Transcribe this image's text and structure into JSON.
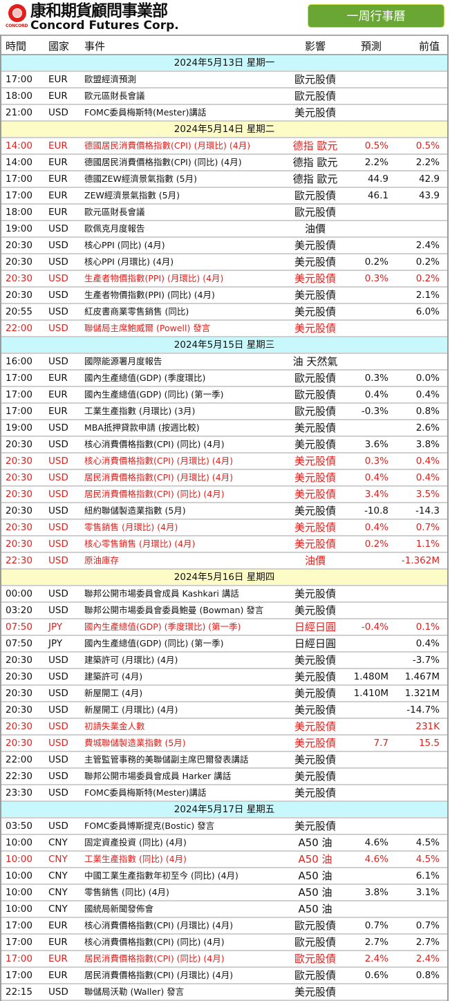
{
  "header": {
    "logo_text": "CONCORD",
    "brand_cn": "康和期貨顧問事業部",
    "brand_en": "Concord Futures Corp.",
    "calendar_button": "一周行事曆"
  },
  "columns": {
    "time": "時間",
    "country": "國家",
    "event": "事件",
    "impact": "影響",
    "forecast": "預測",
    "previous": "前值"
  },
  "days": [
    {
      "date": "2024年5月13日  星期一",
      "events": [
        {
          "time": "17:00",
          "currency": "EUR",
          "event": "歐盟經濟預測",
          "impact": "歐元股債",
          "forecast": "",
          "previous": "",
          "highlight": false
        },
        {
          "time": "18:00",
          "currency": "EUR",
          "event": "歐元區財長會議",
          "impact": "歐元股債",
          "forecast": "",
          "previous": "",
          "highlight": false
        },
        {
          "time": "21:00",
          "currency": "USD",
          "event": "FOMC委員梅斯特(Mester)講話",
          "impact": "美元股債",
          "forecast": "",
          "previous": "",
          "highlight": false
        }
      ]
    },
    {
      "date": "2024年5月14日  星期二",
      "events": [
        {
          "time": "14:00",
          "currency": "EUR",
          "event": "德國居民消費價格指數(CPI) (月環比) (4月)",
          "impact": "德指 歐元",
          "forecast": "0.5%",
          "previous": "0.5%",
          "highlight": true
        },
        {
          "time": "14:00",
          "currency": "EUR",
          "event": "德國居民消費價格指數(CPI) (同比) (4月)",
          "impact": "德指 歐元",
          "forecast": "2.2%",
          "previous": "2.2%",
          "highlight": false
        },
        {
          "time": "17:00",
          "currency": "EUR",
          "event": "德國ZEW經濟景氣指數 (5月)",
          "impact": "德指 歐元",
          "forecast": "44.9",
          "previous": "42.9",
          "highlight": false
        },
        {
          "time": "17:00",
          "currency": "EUR",
          "event": "ZEW經濟景氣指數 (5月)",
          "impact": "歐元股債",
          "forecast": "46.1",
          "previous": "43.9",
          "highlight": false
        },
        {
          "time": "18:00",
          "currency": "EUR",
          "event": "歐元區財長會議",
          "impact": "歐元股債",
          "forecast": "",
          "previous": "",
          "highlight": false
        },
        {
          "time": "19:00",
          "currency": "USD",
          "event": "歐佩克月度報告",
          "impact": "油價",
          "forecast": "",
          "previous": "",
          "highlight": false
        },
        {
          "time": "20:30",
          "currency": "USD",
          "event": "核心PPI (同比) (4月)",
          "impact": "美元股債",
          "forecast": "",
          "previous": "2.4%",
          "highlight": false
        },
        {
          "time": "20:30",
          "currency": "USD",
          "event": "核心PPI (月環比) (4月)",
          "impact": "美元股債",
          "forecast": "0.2%",
          "previous": "0.2%",
          "highlight": false
        },
        {
          "time": "20:30",
          "currency": "USD",
          "event": "生產者物價指數(PPI) (月環比) (4月)",
          "impact": "美元股債",
          "forecast": "0.3%",
          "previous": "0.2%",
          "highlight": true
        },
        {
          "time": "20:30",
          "currency": "USD",
          "event": "生產者物價指數(PPI) (同比) (4月)",
          "impact": "美元股債",
          "forecast": "",
          "previous": "2.1%",
          "highlight": false
        },
        {
          "time": "20:55",
          "currency": "USD",
          "event": "紅皮書商業零售銷售 (同比)",
          "impact": "美元股債",
          "forecast": "",
          "previous": "6.0%",
          "highlight": false
        },
        {
          "time": "22:00",
          "currency": "USD",
          "event": "聯儲局主席鮑威爾 (Powell) 發言",
          "impact": "美元股債",
          "forecast": "",
          "previous": "",
          "highlight": true
        }
      ]
    },
    {
      "date": "2024年5月15日  星期三",
      "events": [
        {
          "time": "16:00",
          "currency": "USD",
          "event": "國際能源署月度報告",
          "impact": "油 天然氣",
          "forecast": "",
          "previous": "",
          "highlight": false
        },
        {
          "time": "17:00",
          "currency": "EUR",
          "event": "國內生產總值(GDP) (季度環比)",
          "impact": "歐元股債",
          "forecast": "0.3%",
          "previous": "0.0%",
          "highlight": false
        },
        {
          "time": "17:00",
          "currency": "EUR",
          "event": "國內生產總值(GDP) (同比) (第一季)",
          "impact": "歐元股債",
          "forecast": "0.4%",
          "previous": "0.4%",
          "highlight": false
        },
        {
          "time": "17:00",
          "currency": "EUR",
          "event": "工業生產指數 (月環比) (3月)",
          "impact": "歐元股債",
          "forecast": "-0.3%",
          "previous": "0.8%",
          "highlight": false
        },
        {
          "time": "19:00",
          "currency": "USD",
          "event": "MBA抵押貸款申請 (按週比較)",
          "impact": "美元股債",
          "forecast": "",
          "previous": "2.6%",
          "highlight": false
        },
        {
          "time": "20:30",
          "currency": "USD",
          "event": "核心消費價格指數(CPI) (同比) (4月)",
          "impact": "美元股債",
          "forecast": "3.6%",
          "previous": "3.8%",
          "highlight": false
        },
        {
          "time": "20:30",
          "currency": "USD",
          "event": "核心消費價格指數(CPI) (月環比) (4月)",
          "impact": "美元股債",
          "forecast": "0.3%",
          "previous": "0.4%",
          "highlight": true
        },
        {
          "time": "20:30",
          "currency": "USD",
          "event": "居民消費價格指數(CPI) (月環比) (4月)",
          "impact": "美元股債",
          "forecast": "0.4%",
          "previous": "0.4%",
          "highlight": true
        },
        {
          "time": "20:30",
          "currency": "USD",
          "event": "居民消費價格指數(CPI) (同比) (4月)",
          "impact": "美元股債",
          "forecast": "3.4%",
          "previous": "3.5%",
          "highlight": true
        },
        {
          "time": "20:30",
          "currency": "USD",
          "event": "紐約聯儲製造業指數 (5月)",
          "impact": "美元股債",
          "forecast": "-10.8",
          "previous": "-14.3",
          "highlight": false
        },
        {
          "time": "20:30",
          "currency": "USD",
          "event": "零售銷售 (月環比) (4月)",
          "impact": "美元股債",
          "forecast": "0.4%",
          "previous": "0.7%",
          "highlight": true
        },
        {
          "time": "20:30",
          "currency": "USD",
          "event": "核心零售銷售 (月環比) (4月)",
          "impact": "美元股債",
          "forecast": "0.2%",
          "previous": "1.1%",
          "highlight": true
        },
        {
          "time": "22:30",
          "currency": "USD",
          "event": "原油庫存",
          "impact": "油價",
          "forecast": "",
          "previous": "-1.362M",
          "highlight": true
        }
      ]
    },
    {
      "date": "2024年5月16日  星期四",
      "events": [
        {
          "time": "00:00",
          "currency": "USD",
          "event": "聯邦公開市場委員會成員 Kashkari 講話",
          "impact": "美元股債",
          "forecast": "",
          "previous": "",
          "highlight": false
        },
        {
          "time": "03:20",
          "currency": "USD",
          "event": "聯邦公開市場委員會委員鮑曼 (Bowman) 發言",
          "impact": "美元股債",
          "forecast": "",
          "previous": "",
          "highlight": false
        },
        {
          "time": "07:50",
          "currency": "JPY",
          "event": "國內生產總值(GDP) (季度環比) (第一季)",
          "impact": "日經日圓",
          "forecast": "-0.4%",
          "previous": "0.1%",
          "highlight": true
        },
        {
          "time": "07:50",
          "currency": "JPY",
          "event": "國內生產總值(GDP) (同比) (第一季)",
          "impact": "日經日圓",
          "forecast": "",
          "previous": "0.4%",
          "highlight": false
        },
        {
          "time": "20:30",
          "currency": "USD",
          "event": "建築許可 (月環比) (4月)",
          "impact": "美元股債",
          "forecast": "",
          "previous": "-3.7%",
          "highlight": false
        },
        {
          "time": "20:30",
          "currency": "USD",
          "event": "建築許可 (4月)",
          "impact": "美元股債",
          "forecast": "1.480M",
          "previous": "1.467M",
          "highlight": false
        },
        {
          "time": "20:30",
          "currency": "USD",
          "event": "新屋開工 (4月)",
          "impact": "美元股債",
          "forecast": "1.410M",
          "previous": "1.321M",
          "highlight": false
        },
        {
          "time": "20:30",
          "currency": "USD",
          "event": "新屋開工 (月環比) (4月)",
          "impact": "美元股債",
          "forecast": "",
          "previous": "-14.7%",
          "highlight": false
        },
        {
          "time": "20:30",
          "currency": "USD",
          "event": "初請失業金人數",
          "impact": "美元股債",
          "forecast": "",
          "previous": "231K",
          "highlight": true
        },
        {
          "time": "20:30",
          "currency": "USD",
          "event": "費城聯儲製造業指數 (5月)",
          "impact": "美元股債",
          "forecast": "7.7",
          "previous": "15.5",
          "highlight": true
        },
        {
          "time": "22:00",
          "currency": "USD",
          "event": "主管監管事務的美聯儲副主席巴爾發表講話",
          "impact": "美元股債",
          "forecast": "",
          "previous": "",
          "highlight": false
        },
        {
          "time": "22:30",
          "currency": "USD",
          "event": "聯邦公開市場委員會成員 Harker 講話",
          "impact": "美元股債",
          "forecast": "",
          "previous": "",
          "highlight": false
        },
        {
          "time": "23:30",
          "currency": "USD",
          "event": "FOMC委員梅斯特(Mester)講話",
          "impact": "美元股債",
          "forecast": "",
          "previous": "",
          "highlight": false
        }
      ]
    },
    {
      "date": "2024年5月17日  星期五",
      "events": [
        {
          "time": "03:50",
          "currency": "USD",
          "event": "FOMC委員博斯提克(Bostic) 發言",
          "impact": "美元股債",
          "forecast": "",
          "previous": "",
          "highlight": false
        },
        {
          "time": "10:00",
          "currency": "CNY",
          "event": "固定資產投資 (同比) (4月)",
          "impact": "A50 油",
          "forecast": "4.6%",
          "previous": "4.5%",
          "highlight": false
        },
        {
          "time": "10:00",
          "currency": "CNY",
          "event": "工業生產指數 (同比) (4月)",
          "impact": "A50 油",
          "forecast": "4.6%",
          "previous": "4.5%",
          "highlight": true
        },
        {
          "time": "10:00",
          "currency": "CNY",
          "event": "中國工業生產指數年初至今 (同比) (4月)",
          "impact": "A50 油",
          "forecast": "",
          "previous": "6.1%",
          "highlight": false
        },
        {
          "time": "10:00",
          "currency": "CNY",
          "event": "零售銷售 (同比) (4月)",
          "impact": "A50 油",
          "forecast": "3.8%",
          "previous": "3.1%",
          "highlight": false
        },
        {
          "time": "10:00",
          "currency": "CNY",
          "event": "國統局新聞發佈會",
          "impact": "A50 油",
          "forecast": "",
          "previous": "",
          "highlight": false
        },
        {
          "time": "17:00",
          "currency": "EUR",
          "event": "核心消費價格指數(CPI) (月環比) (4月)",
          "impact": "歐元股債",
          "forecast": "0.7%",
          "previous": "0.7%",
          "highlight": false
        },
        {
          "time": "17:00",
          "currency": "EUR",
          "event": "核心消費價格指數(CPI) (同比) (4月)",
          "impact": "歐元股債",
          "forecast": "2.7%",
          "previous": "2.7%",
          "highlight": false
        },
        {
          "time": "17:00",
          "currency": "EUR",
          "event": "居民消費價格指數(CPI) (同比) (4月)",
          "impact": "歐元股債",
          "forecast": "2.4%",
          "previous": "2.4%",
          "highlight": true
        },
        {
          "time": "17:00",
          "currency": "EUR",
          "event": "居民消費價格指數(CPI) (月環比) (4月)",
          "impact": "歐元股債",
          "forecast": "0.6%",
          "previous": "0.8%",
          "highlight": false
        },
        {
          "time": "22:15",
          "currency": "USD",
          "event": "聯儲局沃勒 (Waller) 發言",
          "impact": "美元股債",
          "forecast": "",
          "previous": "",
          "highlight": false
        }
      ]
    }
  ],
  "colors": {
    "highlight_text": "#e0201c",
    "day_bg_a": "#c8f8fb",
    "day_bg_b": "#fdfbc6",
    "button_bg": "#6aa633"
  }
}
